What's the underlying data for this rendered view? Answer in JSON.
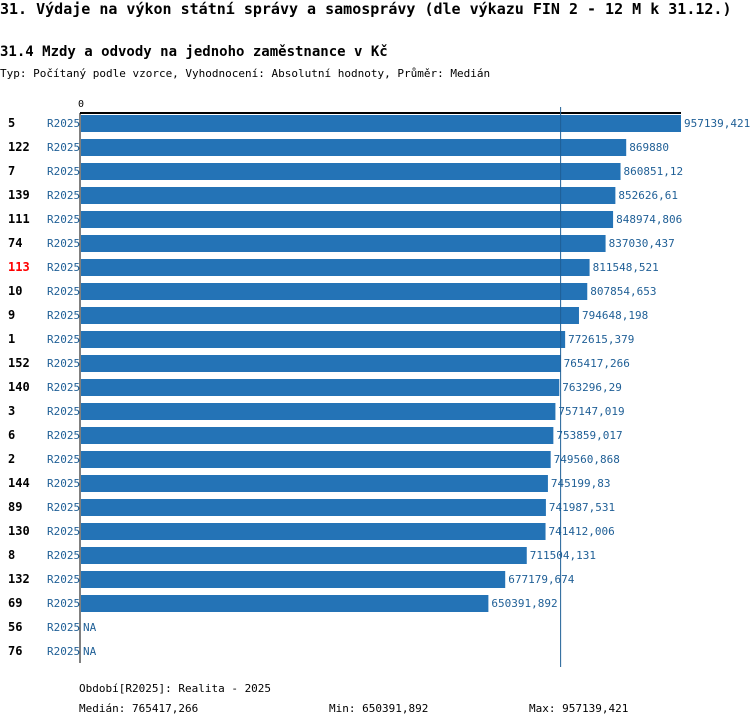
{
  "page": {
    "title": "31. Výdaje na výkon státní správy a samosprávy (dle výkazu FIN 2 - 12 M k 31.12.)",
    "subtitle": "31.4 Mzdy a odvody na jednoho zaměstnance v Kč",
    "meta": "Typ: Počítaný podle vzorce, Vyhodnocení: Absolutní hodnoty, Průměr: Medián"
  },
  "colors": {
    "bar": "#2473b6",
    "label": "#1f5f96",
    "highlight": "#ff0000",
    "axis": "#000000",
    "median_line": "#1f5f96"
  },
  "chart_data": {
    "type": "bar",
    "orientation": "horizontal",
    "title": "31.4 Mzdy a odvody na jednoho zaměstnance v Kč",
    "axis_zero_label": "0",
    "xlim": [
      0,
      957139.421
    ],
    "median": 765417.266,
    "highlight_id": "113",
    "rows": [
      {
        "id": "5",
        "period": "R2025",
        "value": 957139.421,
        "label": "957139,421"
      },
      {
        "id": "122",
        "period": "R2025",
        "value": 869880,
        "label": "869880"
      },
      {
        "id": "7",
        "period": "R2025",
        "value": 860851.12,
        "label": "860851,12"
      },
      {
        "id": "139",
        "period": "R2025",
        "value": 852626.61,
        "label": "852626,61"
      },
      {
        "id": "111",
        "period": "R2025",
        "value": 848974.806,
        "label": "848974,806"
      },
      {
        "id": "74",
        "period": "R2025",
        "value": 837030.437,
        "label": "837030,437"
      },
      {
        "id": "113",
        "period": "R2025",
        "value": 811548.521,
        "label": "811548,521"
      },
      {
        "id": "10",
        "period": "R2025",
        "value": 807854.653,
        "label": "807854,653"
      },
      {
        "id": "9",
        "period": "R2025",
        "value": 794648.198,
        "label": "794648,198"
      },
      {
        "id": "1",
        "period": "R2025",
        "value": 772615.379,
        "label": "772615,379"
      },
      {
        "id": "152",
        "period": "R2025",
        "value": 765417.266,
        "label": "765417,266"
      },
      {
        "id": "140",
        "period": "R2025",
        "value": 763296.29,
        "label": "763296,29"
      },
      {
        "id": "3",
        "period": "R2025",
        "value": 757147.019,
        "label": "757147,019"
      },
      {
        "id": "6",
        "period": "R2025",
        "value": 753859.017,
        "label": "753859,017"
      },
      {
        "id": "2",
        "period": "R2025",
        "value": 749560.868,
        "label": "749560,868"
      },
      {
        "id": "144",
        "period": "R2025",
        "value": 745199.83,
        "label": "745199,83"
      },
      {
        "id": "89",
        "period": "R2025",
        "value": 741987.531,
        "label": "741987,531"
      },
      {
        "id": "130",
        "period": "R2025",
        "value": 741412.006,
        "label": "741412,006"
      },
      {
        "id": "8",
        "period": "R2025",
        "value": 711504.131,
        "label": "711504,131"
      },
      {
        "id": "132",
        "period": "R2025",
        "value": 677179.674,
        "label": "677179,674"
      },
      {
        "id": "69",
        "period": "R2025",
        "value": 650391.892,
        "label": "650391,892"
      },
      {
        "id": "56",
        "period": "R2025",
        "value": null,
        "label": "NA"
      },
      {
        "id": "76",
        "period": "R2025",
        "value": null,
        "label": "NA"
      }
    ]
  },
  "footer": {
    "period": "Období[R2025]: Realita - 2025",
    "median": "Medián: 765417,266",
    "min": "Min: 650391,892",
    "max": "Max: 957139,421"
  }
}
